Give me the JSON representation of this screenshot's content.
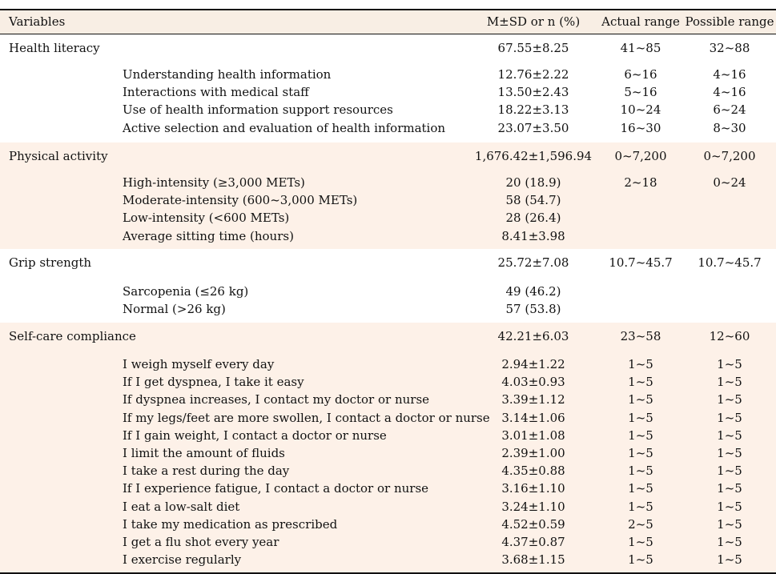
{
  "header": {
    "variables": "Variables",
    "msd": "M±SD or n (%)",
    "actual": "Actual range",
    "possible": "Possible range"
  },
  "sections": [
    {
      "name": "Health literacy",
      "msd": "67.55±8.25",
      "actual": "41~85",
      "possible": "32~88",
      "items": [
        {
          "label": "Understanding health information",
          "msd": "12.76±2.22",
          "actual": "6~16",
          "possible": "4~16"
        },
        {
          "label": "Interactions with medical staff",
          "msd": "13.50±2.43",
          "actual": "5~16",
          "possible": "4~16"
        },
        {
          "label": "Use of health information support resources",
          "msd": "18.22±3.13",
          "actual": "10~24",
          "possible": "6~24"
        },
        {
          "label": "Active selection and evaluation of health information",
          "msd": "23.07±3.50",
          "actual": "16~30",
          "possible": "8~30"
        }
      ]
    },
    {
      "name": "Physical activity",
      "msd": "1,676.42±1,596.94",
      "actual": "0~7,200",
      "possible": "0~7,200",
      "items": [
        {
          "label": "High-intensity (≥3,000 METs)",
          "msd": "20 (18.9)",
          "actual": "2~18",
          "possible": "0~24"
        },
        {
          "label": "Moderate-intensity (600~3,000 METs)",
          "msd": "58 (54.7)",
          "actual": "",
          "possible": ""
        },
        {
          "label": "Low-intensity (<600 METs)",
          "msd": "28 (26.4)",
          "actual": "",
          "possible": ""
        },
        {
          "label": "Average sitting time (hours)",
          "msd": "8.41±3.98",
          "actual": "",
          "possible": ""
        }
      ]
    },
    {
      "name": "Grip strength",
      "msd": "25.72±7.08",
      "actual": "10.7~45.7",
      "possible": "10.7~45.7",
      "items": [
        {
          "label": "Sarcopenia (≤26 kg)",
          "msd": "49 (46.2)",
          "actual": "",
          "possible": ""
        },
        {
          "label": "Normal (>26 kg)",
          "msd": "57 (53.8)",
          "actual": "",
          "possible": ""
        }
      ]
    },
    {
      "name": "Self-care compliance",
      "msd": "42.21±6.03",
      "actual": "23~58",
      "possible": "12~60",
      "items": [
        {
          "label": "I weigh myself every day",
          "msd": "2.94±1.22",
          "actual": "1~5",
          "possible": "1~5"
        },
        {
          "label": "If I get dyspnea, I take it easy",
          "msd": "4.03±0.93",
          "actual": "1~5",
          "possible": "1~5"
        },
        {
          "label": "If dyspnea increases, I contact my doctor or nurse",
          "msd": "3.39±1.12",
          "actual": "1~5",
          "possible": "1~5"
        },
        {
          "label": "If my legs/feet are more swollen, I contact a doctor or nurse",
          "msd": "3.14±1.06",
          "actual": "1~5",
          "possible": "1~5"
        },
        {
          "label": "If I gain weight, I contact a doctor or nurse",
          "msd": "3.01±1.08",
          "actual": "1~5",
          "possible": "1~5"
        },
        {
          "label": "I limit the amount of fluids",
          "msd": "2.39±1.00",
          "actual": "1~5",
          "possible": "1~5"
        },
        {
          "label": "I take a rest during the day",
          "msd": "4.35±0.88",
          "actual": "1~5",
          "possible": "1~5"
        },
        {
          "label": "If I experience fatigue, I contact a doctor or nurse",
          "msd": "3.16±1.10",
          "actual": "1~5",
          "possible": "1~5"
        },
        {
          "label": "I eat a low-salt diet",
          "msd": "3.24±1.10",
          "actual": "1~5",
          "possible": "1~5"
        },
        {
          "label": "I take my medication as prescribed",
          "msd": "4.52±0.59",
          "actual": "2~5",
          "possible": "1~5"
        },
        {
          "label": "I get a flu shot every year",
          "msd": "4.37±0.87",
          "actual": "1~5",
          "possible": "1~5"
        },
        {
          "label": "I exercise regularly",
          "msd": "3.68±1.15",
          "actual": "1~5",
          "possible": "1~5"
        }
      ]
    }
  ]
}
